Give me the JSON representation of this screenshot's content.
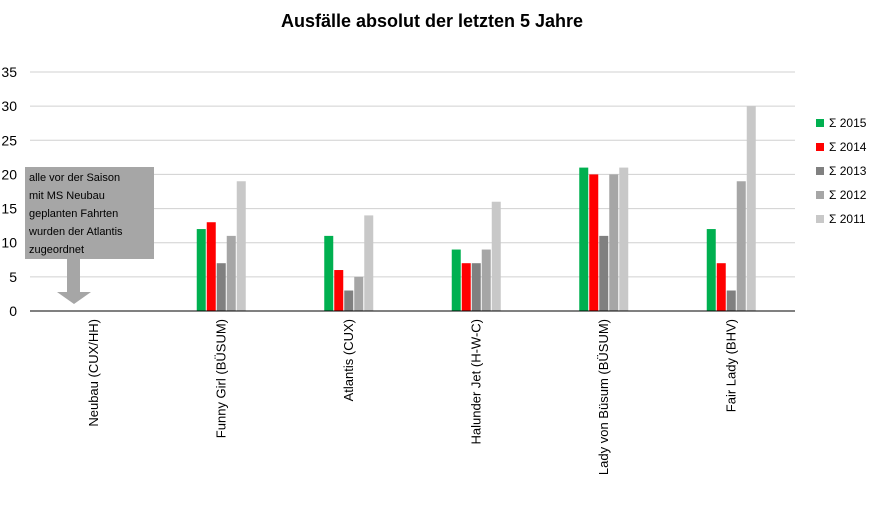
{
  "chart_data": {
    "type": "bar",
    "title": "Ausfälle absolut der letzten 5 Jahre",
    "categories": [
      "Neubau (CUX/HH)",
      "Funny Girl (BÜSUM)",
      "Atlantis (CUX)",
      "Halunder Jet (H-W-C)",
      "Lady von Büsum (BÜSUM)",
      "Fair Lady (BHV)"
    ],
    "series": [
      {
        "name": "Σ 2015",
        "color": "#00b050",
        "values": [
          0,
          12,
          11,
          9,
          21,
          12
        ]
      },
      {
        "name": "Σ 2014",
        "color": "#ff0000",
        "values": [
          0,
          13,
          6,
          7,
          20,
          7
        ]
      },
      {
        "name": "Σ 2013",
        "color": "#808080",
        "values": [
          0,
          7,
          3,
          7,
          11,
          3
        ]
      },
      {
        "name": "Σ 2012",
        "color": "#a6a6a6",
        "values": [
          0,
          11,
          5,
          9,
          20,
          19
        ]
      },
      {
        "name": "Σ 2011",
        "color": "#c8c8c8",
        "values": [
          0,
          19,
          14,
          16,
          21,
          30
        ]
      }
    ],
    "yticks": [
      "0",
      "5",
      "10",
      "15",
      "20",
      "25",
      "30",
      "35"
    ],
    "ylim": [
      0,
      35
    ],
    "grid": true,
    "legend": "right",
    "annotation": {
      "lines": [
        "alle vor der Saison",
        "mit MS Neubau",
        "geplanten Fahrten",
        "wurden der Atlantis",
        "zugeordnet"
      ],
      "box_color": "#a6a6a6"
    }
  }
}
